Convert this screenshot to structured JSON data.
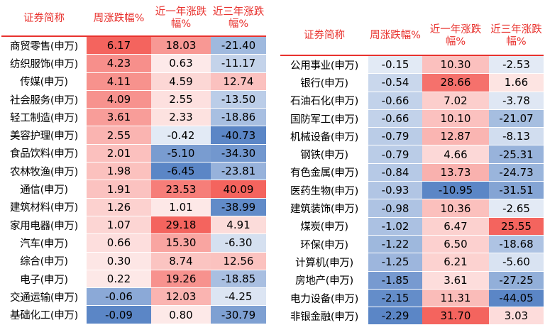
{
  "colors": {
    "header_text": "#e8322e",
    "pos_max": "#f4645e",
    "neg_max": "#5b86c6"
  },
  "left_table": {
    "headers": [
      "证券简称",
      "周涨跌幅%",
      "近一年涨跌幅%",
      "近三年涨跌幅%"
    ],
    "rows": [
      [
        "商贸零售(申万)",
        "6.17",
        "18.03",
        "-21.40"
      ],
      [
        "纺织服饰(申万)",
        "4.23",
        "0.63",
        "-11.17"
      ],
      [
        "传媒(申万)",
        "4.11",
        "4.59",
        "12.74"
      ],
      [
        "社会服务(申万)",
        "4.09",
        "2.55",
        "-13.50"
      ],
      [
        "轻工制造(申万)",
        "3.61",
        "2.33",
        "-18.86"
      ],
      [
        "美容护理(申万)",
        "2.55",
        "-0.42",
        "-40.73"
      ],
      [
        "食品饮料(申万)",
        "2.01",
        "-5.10",
        "-34.30"
      ],
      [
        "农林牧渔(申万)",
        "1.98",
        "-6.45",
        "-23.81"
      ],
      [
        "通信(申万)",
        "1.91",
        "23.53",
        "40.09"
      ],
      [
        "建筑材料(申万)",
        "1.26",
        "1.01",
        "-38.99"
      ],
      [
        "家用电器(申万)",
        "1.07",
        "29.18",
        "4.91"
      ],
      [
        "汽车(申万)",
        "0.66",
        "15.30",
        "-6.30"
      ],
      [
        "综合(申万)",
        "0.30",
        "8.74",
        "12.56"
      ],
      [
        "电子(申万)",
        "0.22",
        "19.26",
        "-18.85"
      ],
      [
        "交通运输(申万)",
        "-0.06",
        "12.03",
        "-4.25"
      ],
      [
        "基础化工(申万)",
        "-0.09",
        "0.80",
        "-30.79"
      ]
    ]
  },
  "right_table": {
    "headers": [
      "证券简称",
      "周涨跌幅%",
      "近一年涨跌幅%",
      "近三年涨跌幅%"
    ],
    "rows": [
      [
        "公用事业(申万)",
        "-0.15",
        "10.30",
        "-2.53"
      ],
      [
        "银行(申万)",
        "-0.54",
        "28.66",
        "1.66"
      ],
      [
        "石油石化(申万)",
        "-0.66",
        "7.02",
        "-3.78"
      ],
      [
        "国防军工(申万)",
        "-0.66",
        "10.10",
        "-21.07"
      ],
      [
        "机械设备(申万)",
        "-0.79",
        "12.87",
        "-8.13"
      ],
      [
        "钢铁(申万)",
        "-0.79",
        "4.66",
        "-25.31"
      ],
      [
        "有色金属(申万)",
        "-0.84",
        "13.73",
        "-24.73"
      ],
      [
        "医药生物(申万)",
        "-0.93",
        "-10.95",
        "-31.51"
      ],
      [
        "建筑装饰(申万)",
        "-0.98",
        "10.36",
        "-2.65"
      ],
      [
        "煤炭(申万)",
        "-1.02",
        "6.47",
        "25.55"
      ],
      [
        "环保(申万)",
        "-1.22",
        "6.50",
        "-18.68"
      ],
      [
        "计算机(申万)",
        "-1.25",
        "6.21",
        "-5.60"
      ],
      [
        "房地产(申万)",
        "-1.85",
        "3.61",
        "-27.25"
      ],
      [
        "电力设备(申万)",
        "-2.15",
        "11.31",
        "-44.05"
      ],
      [
        "非银金融(申万)",
        "-2.29",
        "31.70",
        "3.03"
      ]
    ]
  }
}
